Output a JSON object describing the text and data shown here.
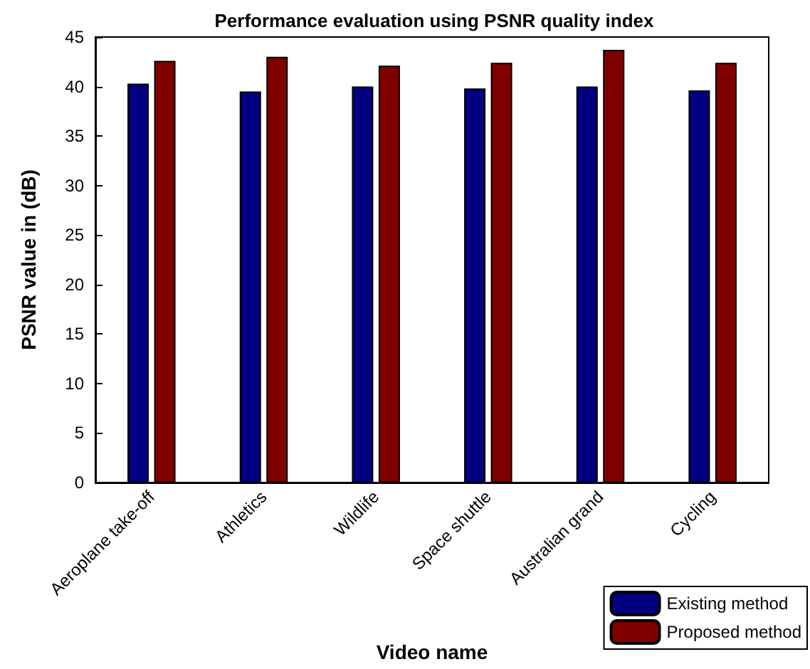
{
  "chart_data": {
    "type": "bar",
    "title": "Performance evaluation using PSNR quality index",
    "xlabel": "Video name",
    "ylabel": "PSNR value in (dB)",
    "categories": [
      "Aeroplane take-off",
      "Athletics",
      "Wildlife",
      "Space shuttle",
      "Australian grand",
      "Cycling"
    ],
    "series": [
      {
        "name": "Existing method",
        "color": "#000080",
        "values": [
          40.3,
          39.5,
          40.0,
          39.8,
          40.0,
          39.6
        ]
      },
      {
        "name": "Proposed method",
        "color": "#800000",
        "values": [
          42.6,
          43.0,
          42.1,
          42.4,
          43.7,
          42.4
        ]
      }
    ],
    "ylim": [
      0,
      45
    ],
    "yticks": [
      0,
      5,
      10,
      15,
      20,
      25,
      30,
      35,
      40,
      45
    ],
    "grid": false,
    "legend": "bottom right"
  }
}
